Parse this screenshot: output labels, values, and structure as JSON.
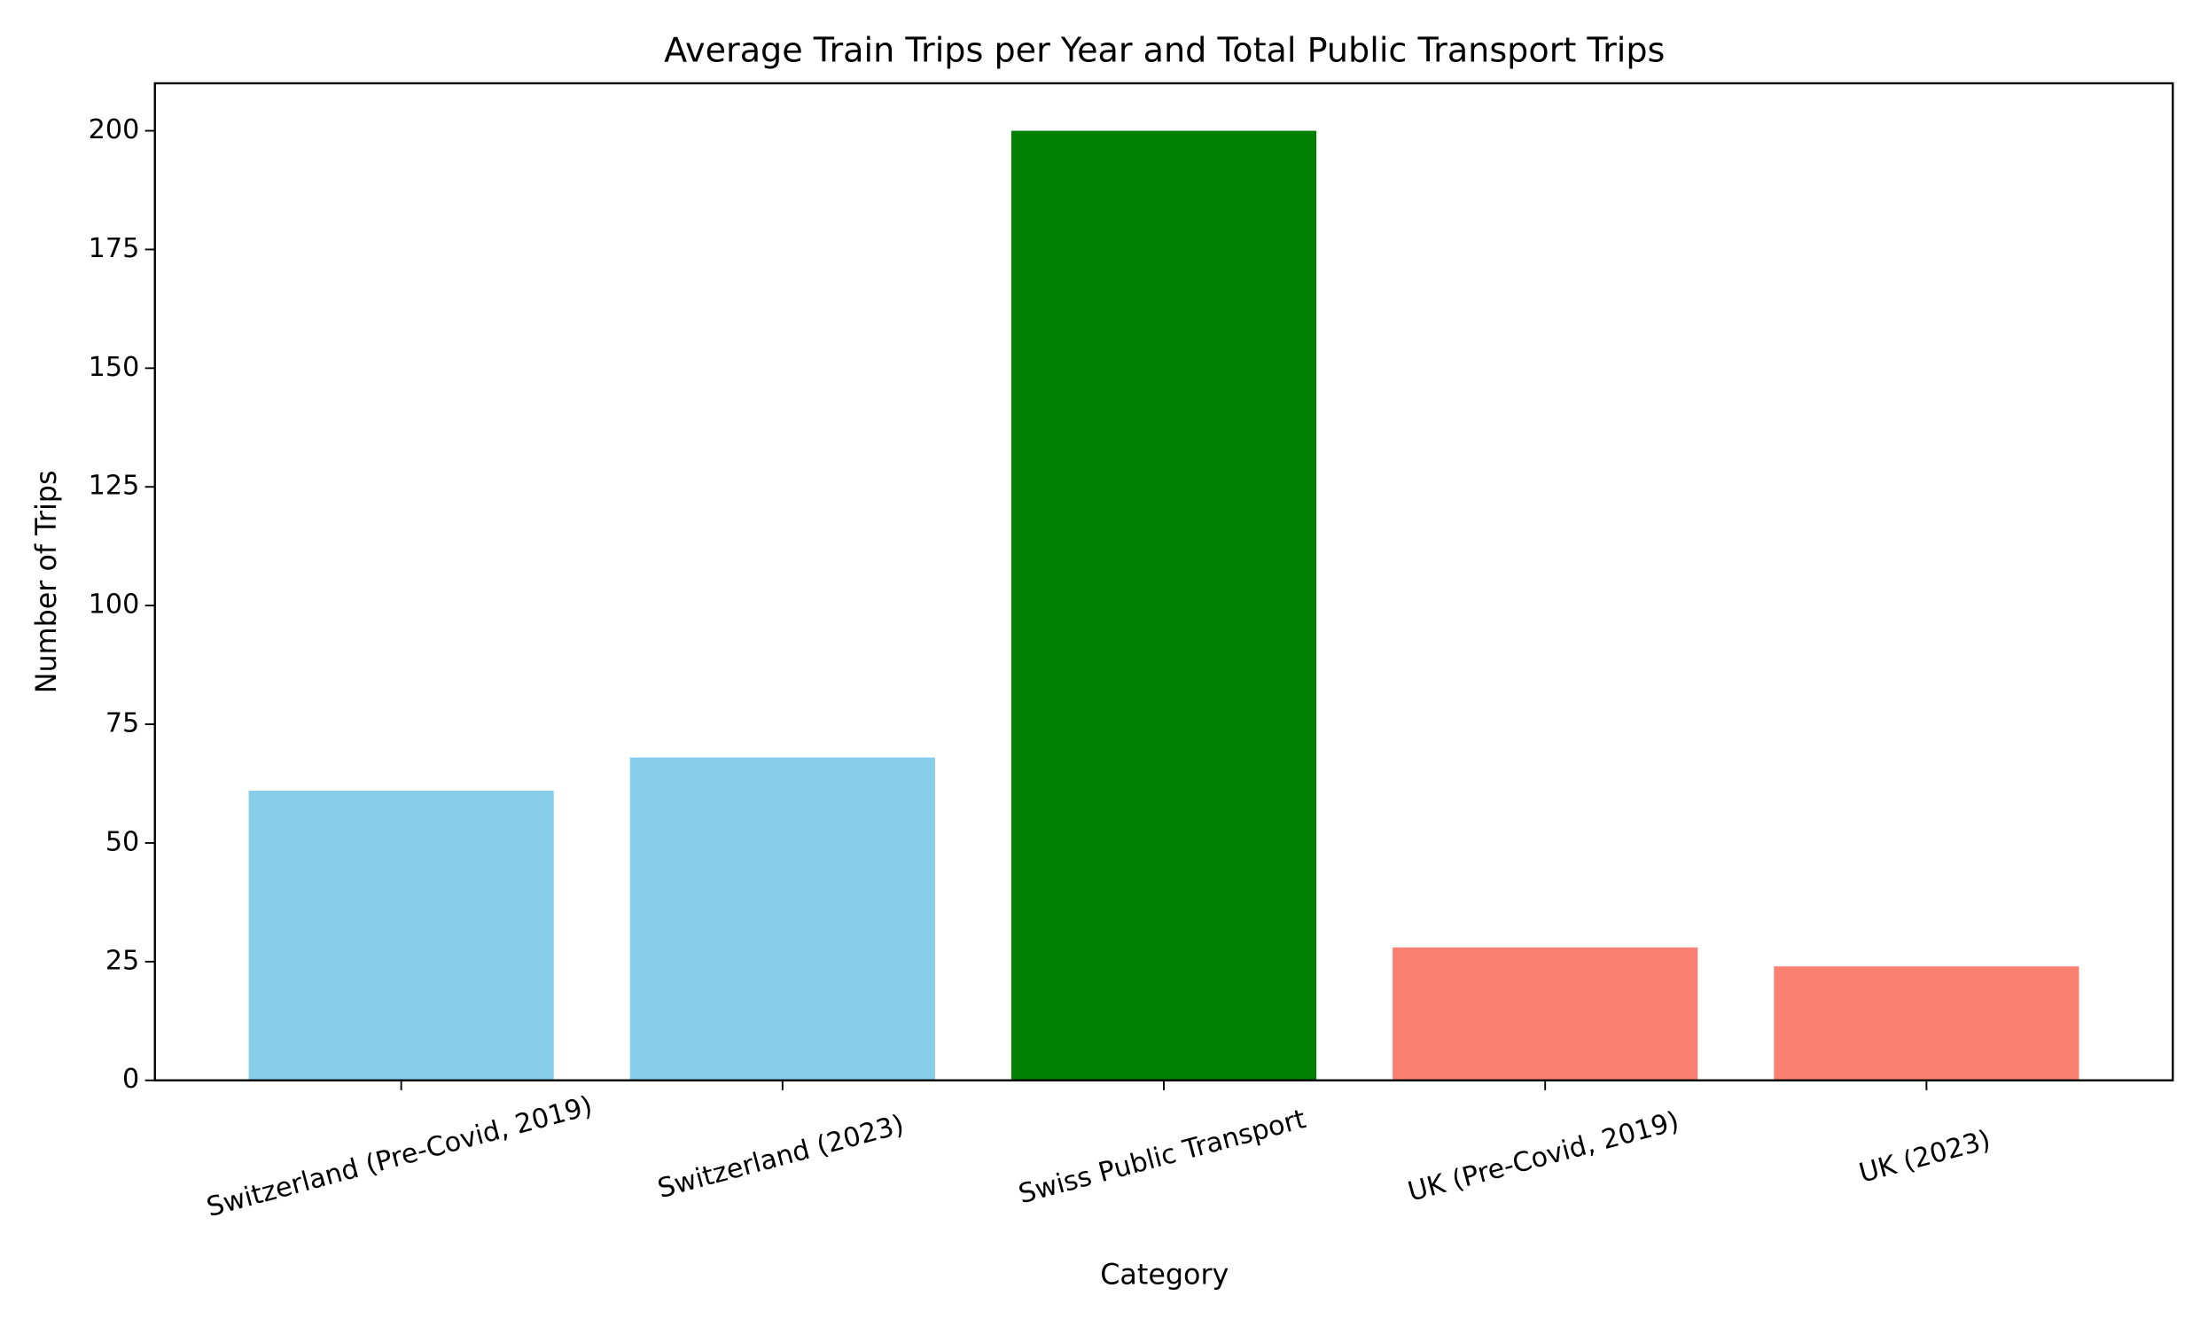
{
  "chart_data": {
    "type": "bar",
    "title": "Average Train Trips per Year and Total Public Transport Trips",
    "x_label": "Category",
    "y_label": "Number of Trips",
    "categories": [
      "Switzerland (Pre-Covid, 2019)",
      "Switzerland (2023)",
      "Swiss Public Transport",
      "UK (Pre-Covid, 2019)",
      "UK (2023)"
    ],
    "values": [
      61,
      68,
      200,
      28,
      24
    ],
    "colors": [
      "#87ceeb",
      "#87ceeb",
      "#008000",
      "#fa8072",
      "#fa8072"
    ],
    "ylim": [
      0,
      210
    ],
    "yticks": [
      0,
      25,
      50,
      75,
      100,
      125,
      150,
      175,
      200
    ],
    "grid": false
  }
}
